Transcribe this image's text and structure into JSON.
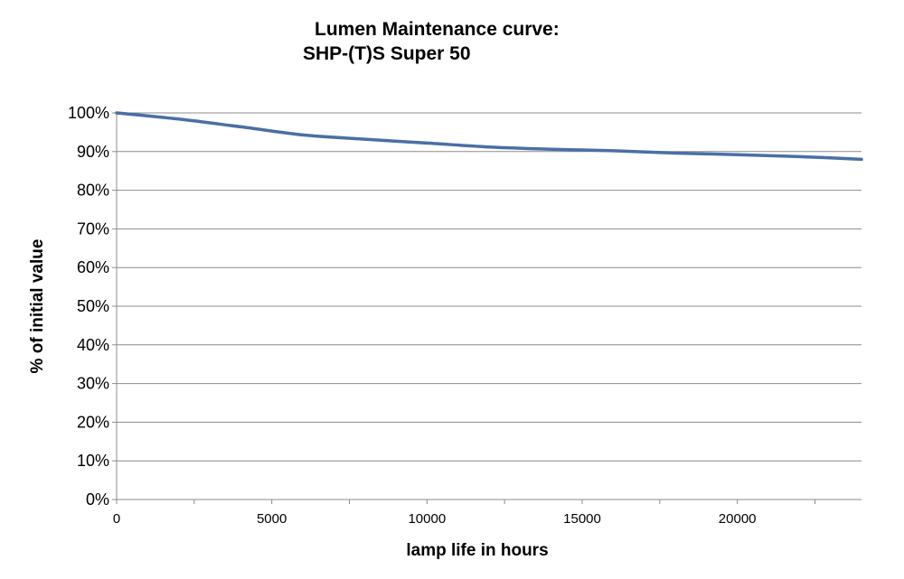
{
  "chart_data": {
    "type": "line",
    "title_line1": "Lumen Maintenance curve:",
    "title_line2": "SHP-(T)S Super  50",
    "xlabel": "lamp life in hours",
    "ylabel": "% of initial value",
    "xlim": [
      0,
      24000
    ],
    "ylim": [
      0,
      100
    ],
    "x_ticks": [
      0,
      5000,
      10000,
      15000,
      20000
    ],
    "x_tick_labels": [
      "0",
      "5000",
      "10000",
      "15000",
      "20000"
    ],
    "y_ticks": [
      0,
      10,
      20,
      30,
      40,
      50,
      60,
      70,
      80,
      90,
      100
    ],
    "y_tick_labels": [
      "0%",
      "10%",
      "20%",
      "30%",
      "40%",
      "50%",
      "60%",
      "70%",
      "80%",
      "90%",
      "100%"
    ],
    "grid": true,
    "series": [
      {
        "color": "#4a6fa5",
        "x": [
          0,
          2000,
          4000,
          6000,
          8000,
          10000,
          12000,
          14000,
          16000,
          18000,
          20000,
          22000,
          24000
        ],
        "values": [
          100,
          98.4,
          96.4,
          94.3,
          93.2,
          92.2,
          91.2,
          90.6,
          90.2,
          89.6,
          89.2,
          88.7,
          88.0
        ]
      }
    ]
  }
}
